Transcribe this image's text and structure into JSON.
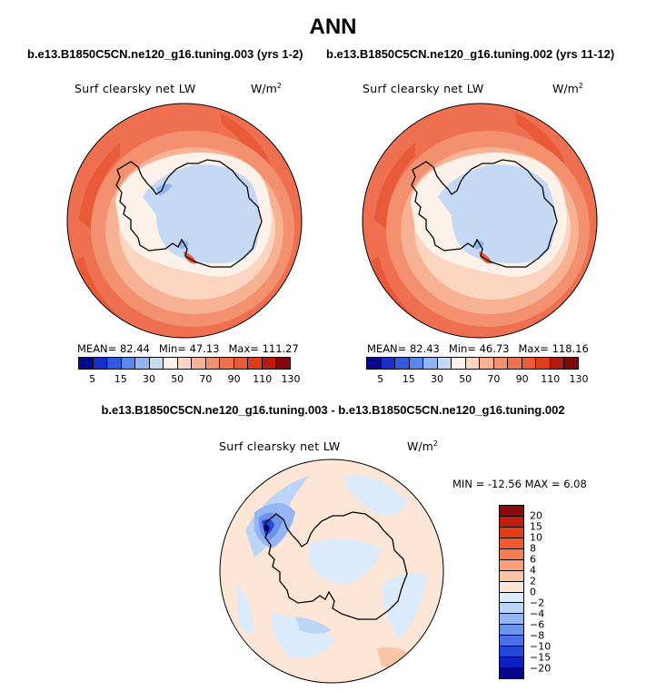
{
  "title": "ANN",
  "panels": [
    {
      "case_title": "b.e13.B1850C5CN.ne120_g16.tuning.003 (yrs 1-2)",
      "variable": "Surf clearsky net LW",
      "units": "W/m",
      "units_sup": "2",
      "stats": {
        "mean": "MEAN=  82.44",
        "min": "Min=  47.13",
        "max": "Max= 111.27"
      }
    },
    {
      "case_title": "b.e13.B1850C5CN.ne120_g16.tuning.002 (yrs 11-12)",
      "variable": "Surf clearsky net LW",
      "units": "W/m",
      "units_sup": "2",
      "stats": {
        "mean": "MEAN=  82.43",
        "min": "Min=  46.73",
        "max": "Max= 118.16"
      }
    }
  ],
  "colorbar": {
    "colors": [
      "#08088a",
      "#1a2fc8",
      "#3158e0",
      "#5a86f0",
      "#93b4f2",
      "#c5d9f5",
      "#fdf2ea",
      "#fbd5c0",
      "#f7b193",
      "#f39070",
      "#ef7050",
      "#e85a38",
      "#de3e1c",
      "#b81a10",
      "#800808"
    ],
    "ticks": [
      "5",
      "15",
      "30",
      "50",
      "70",
      "90",
      "110",
      "130"
    ]
  },
  "diff": {
    "title": "b.e13.B1850C5CN.ne120_g16.tuning.003 - b.e13.B1850C5CN.ne120_g16.tuning.002",
    "variable": "Surf clearsky net LW",
    "units": "W/m",
    "units_sup": "2",
    "minmax": "MIN = -12.56 MAX =   6.08",
    "colors": [
      "#8c0a0a",
      "#c01e0e",
      "#e23c18",
      "#f15a30",
      "#f57d52",
      "#f8a07a",
      "#fbc4a6",
      "#fde6d6",
      "#dcebfb",
      "#bcd5f7",
      "#94b6f2",
      "#6e93ec",
      "#4a6fe8",
      "#2348da",
      "#0e1fc4",
      "#05068a"
    ],
    "ticks": [
      "20",
      "15",
      "10",
      "8",
      "6",
      "4",
      "2",
      "0",
      "−2",
      "−4",
      "−6",
      "−8",
      "−10",
      "−15",
      "−20"
    ]
  }
}
